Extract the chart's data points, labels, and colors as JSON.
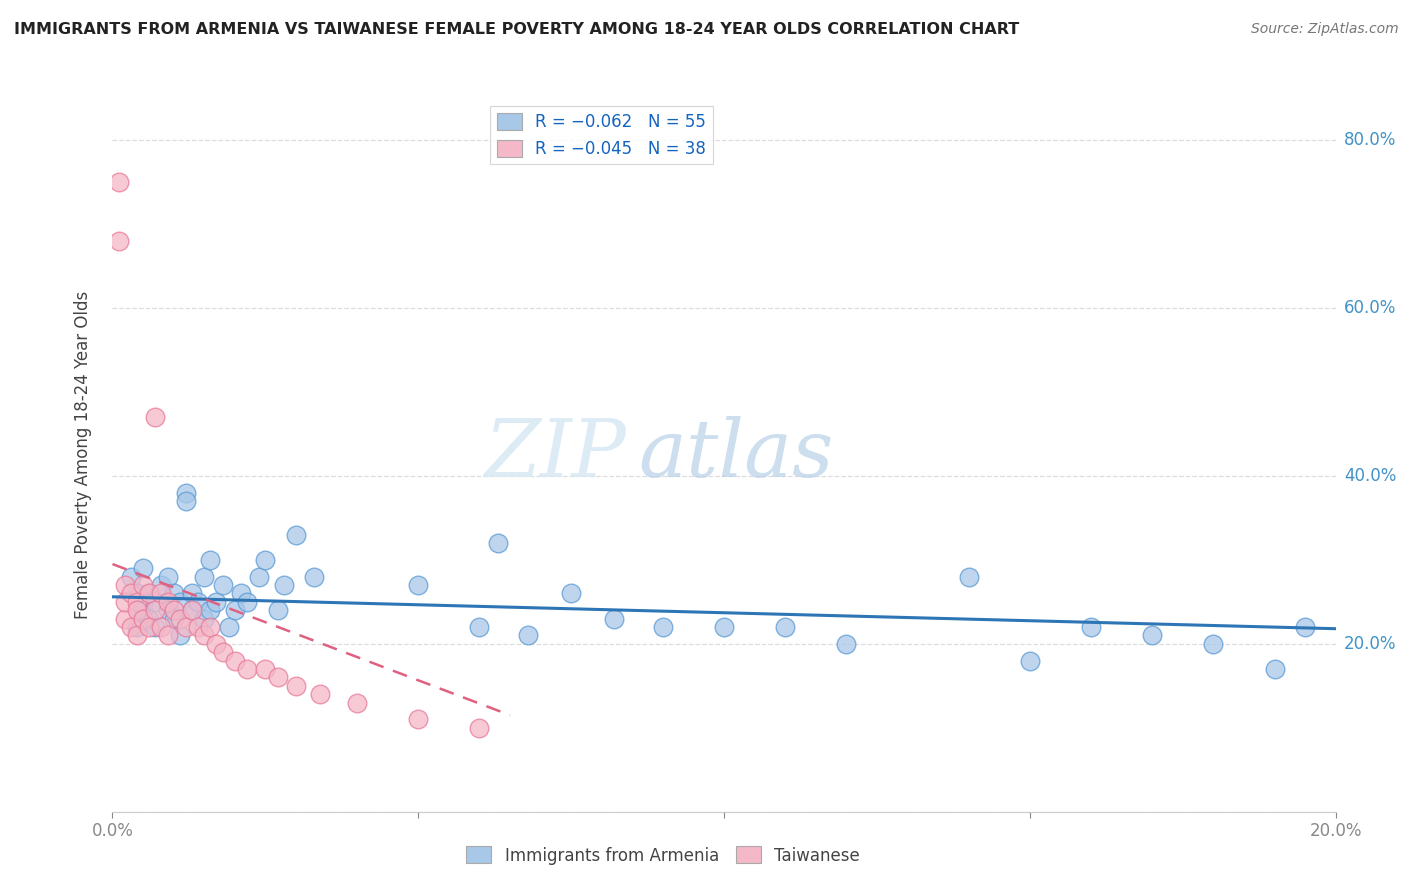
{
  "title": "IMMIGRANTS FROM ARMENIA VS TAIWANESE FEMALE POVERTY AMONG 18-24 YEAR OLDS CORRELATION CHART",
  "source": "Source: ZipAtlas.com",
  "ylabel": "Female Poverty Among 18-24 Year Olds",
  "xlim": [
    0.0,
    0.2
  ],
  "ylim": [
    0.0,
    0.85
  ],
  "watermark_zip": "ZIP",
  "watermark_atlas": "atlas",
  "color_blue": "#a8c8e8",
  "color_blue_dark": "#5b9bd5",
  "color_blue_line": "#2e75b6",
  "color_pink": "#f4b8c8",
  "color_pink_dark": "#e87a9a",
  "color_pink_line": "#e06080",
  "color_r_text": "#1565C0",
  "blue_scatter_x": [
    0.003,
    0.004,
    0.004,
    0.005,
    0.005,
    0.005,
    0.006,
    0.006,
    0.007,
    0.007,
    0.008,
    0.009,
    0.009,
    0.01,
    0.01,
    0.011,
    0.011,
    0.012,
    0.012,
    0.013,
    0.013,
    0.014,
    0.015,
    0.015,
    0.016,
    0.016,
    0.017,
    0.018,
    0.019,
    0.02,
    0.021,
    0.022,
    0.024,
    0.025,
    0.027,
    0.028,
    0.03,
    0.033,
    0.05,
    0.06,
    0.063,
    0.068,
    0.075,
    0.082,
    0.09,
    0.1,
    0.11,
    0.12,
    0.14,
    0.15,
    0.16,
    0.17,
    0.18,
    0.19,
    0.195
  ],
  "blue_scatter_y": [
    0.28,
    0.26,
    0.22,
    0.25,
    0.29,
    0.24,
    0.26,
    0.23,
    0.25,
    0.22,
    0.27,
    0.24,
    0.28,
    0.26,
    0.23,
    0.25,
    0.21,
    0.38,
    0.37,
    0.26,
    0.24,
    0.25,
    0.28,
    0.23,
    0.3,
    0.24,
    0.25,
    0.27,
    0.22,
    0.24,
    0.26,
    0.25,
    0.28,
    0.3,
    0.24,
    0.27,
    0.33,
    0.28,
    0.27,
    0.22,
    0.32,
    0.21,
    0.26,
    0.23,
    0.22,
    0.22,
    0.22,
    0.2,
    0.28,
    0.18,
    0.22,
    0.21,
    0.2,
    0.17,
    0.22
  ],
  "pink_scatter_x": [
    0.001,
    0.001,
    0.002,
    0.002,
    0.002,
    0.003,
    0.003,
    0.004,
    0.004,
    0.004,
    0.005,
    0.005,
    0.006,
    0.006,
    0.007,
    0.007,
    0.008,
    0.008,
    0.009,
    0.009,
    0.01,
    0.011,
    0.012,
    0.013,
    0.014,
    0.015,
    0.016,
    0.017,
    0.018,
    0.02,
    0.022,
    0.025,
    0.027,
    0.03,
    0.034,
    0.04,
    0.05,
    0.06
  ],
  "pink_scatter_y": [
    0.75,
    0.68,
    0.27,
    0.23,
    0.25,
    0.26,
    0.22,
    0.25,
    0.21,
    0.24,
    0.27,
    0.23,
    0.26,
    0.22,
    0.47,
    0.24,
    0.26,
    0.22,
    0.25,
    0.21,
    0.24,
    0.23,
    0.22,
    0.24,
    0.22,
    0.21,
    0.22,
    0.2,
    0.19,
    0.18,
    0.17,
    0.17,
    0.16,
    0.15,
    0.14,
    0.13,
    0.11,
    0.1
  ],
  "grid_color": "#dddddd",
  "background_color": "#ffffff",
  "tick_color": "#888888"
}
